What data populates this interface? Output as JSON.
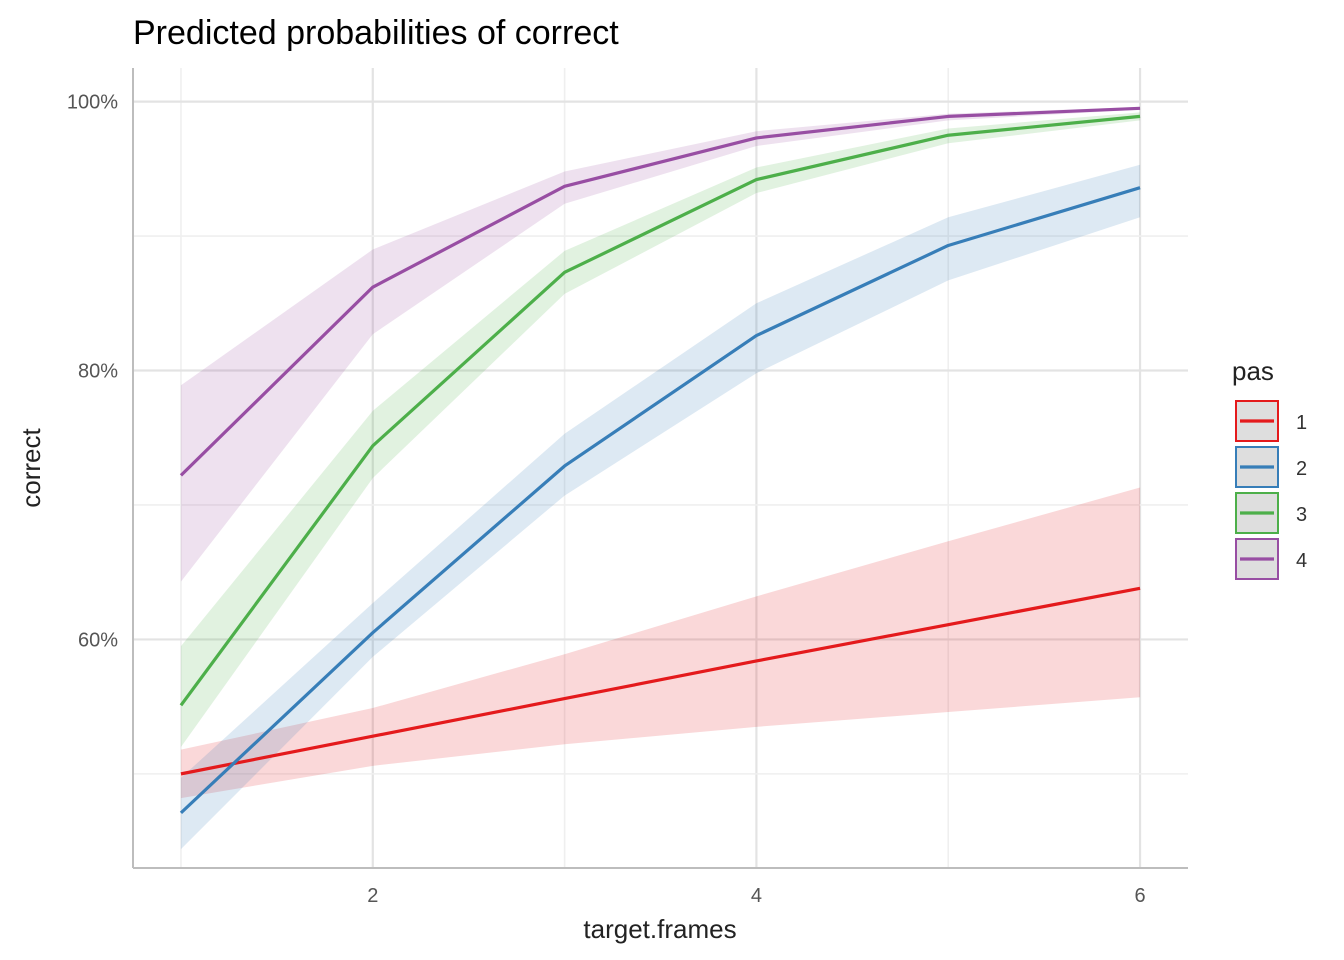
{
  "chart_data": {
    "type": "line",
    "title": "Predicted probabilities of correct",
    "xlabel": "target.frames",
    "ylabel": "correct",
    "x": [
      1,
      2,
      3,
      4,
      5,
      6
    ],
    "xlim": [
      0.75,
      6.25
    ],
    "ylim": [
      0.43,
      1.025
    ],
    "x_ticks": [
      2,
      4,
      6
    ],
    "x_tick_labels": [
      "2",
      "4",
      "6"
    ],
    "y_ticks": [
      0.6,
      0.8,
      1.0
    ],
    "y_tick_labels": [
      "60%",
      "80%",
      "100%"
    ],
    "grid": true,
    "legend": {
      "title": "pas",
      "position": "right"
    },
    "series": [
      {
        "name": "1",
        "color": "#E41A1C",
        "values": [
          0.5,
          0.528,
          0.556,
          0.584,
          0.611,
          0.638
        ],
        "lower": [
          0.482,
          0.506,
          0.522,
          0.535,
          0.546,
          0.557
        ],
        "upper": [
          0.518,
          0.549,
          0.589,
          0.632,
          0.673,
          0.713
        ]
      },
      {
        "name": "2",
        "color": "#377EB8",
        "values": [
          0.471,
          0.605,
          0.729,
          0.826,
          0.893,
          0.936
        ],
        "lower": [
          0.444,
          0.587,
          0.707,
          0.798,
          0.867,
          0.914
        ],
        "upper": [
          0.497,
          0.627,
          0.753,
          0.85,
          0.914,
          0.953
        ]
      },
      {
        "name": "3",
        "color": "#4DAF4A",
        "values": [
          0.551,
          0.744,
          0.873,
          0.942,
          0.975,
          0.989
        ],
        "lower": [
          0.52,
          0.72,
          0.857,
          0.932,
          0.969,
          0.986
        ],
        "upper": [
          0.595,
          0.77,
          0.889,
          0.951,
          0.98,
          0.992
        ]
      },
      {
        "name": "4",
        "color": "#984EA3",
        "values": [
          0.722,
          0.862,
          0.937,
          0.973,
          0.989,
          0.995
        ],
        "lower": [
          0.643,
          0.827,
          0.924,
          0.967,
          0.986,
          0.994
        ],
        "upper": [
          0.789,
          0.89,
          0.948,
          0.978,
          0.991,
          0.996
        ]
      }
    ]
  }
}
